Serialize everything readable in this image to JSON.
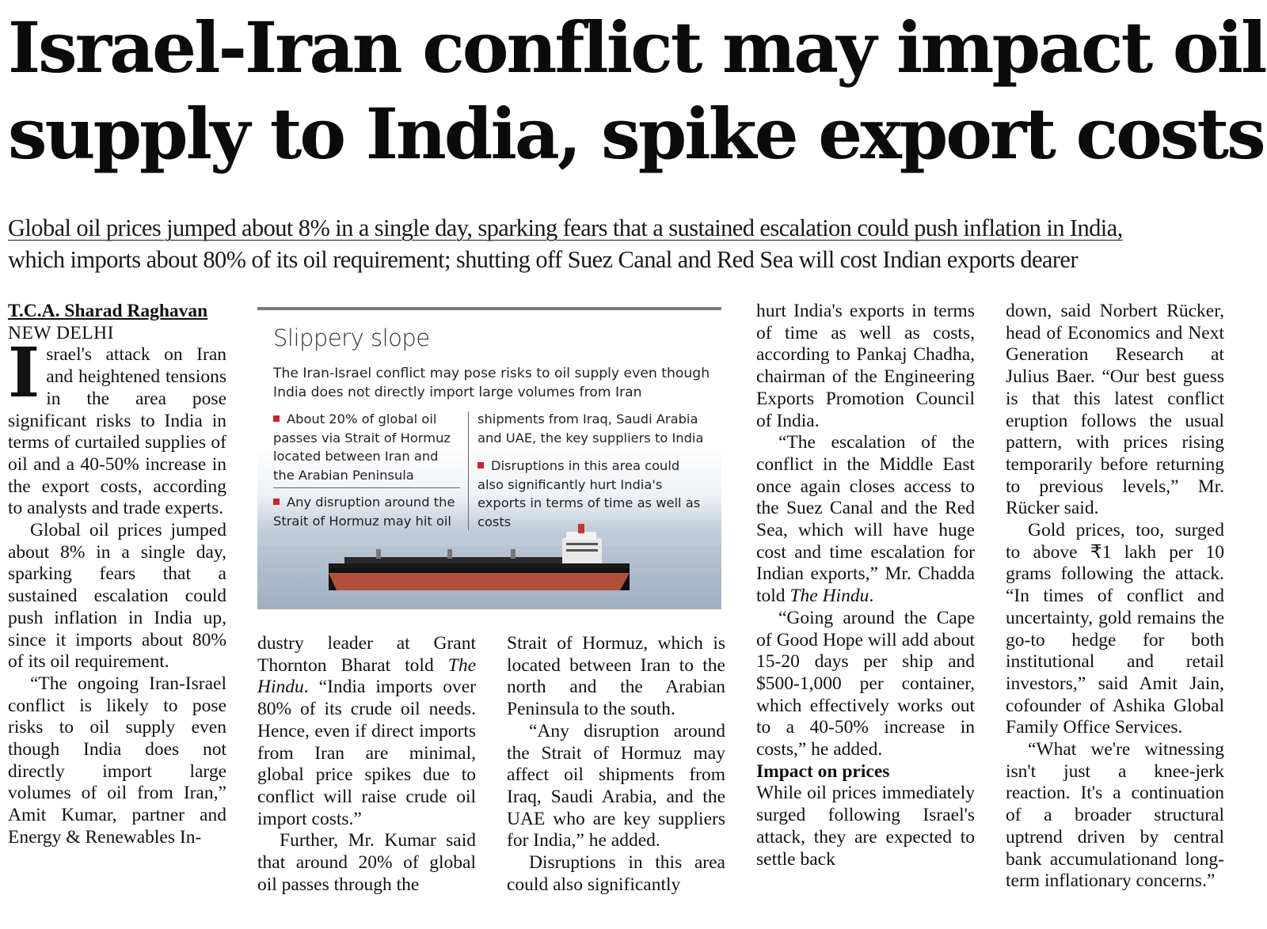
{
  "headline": {
    "line1": "Israel-Iran conflict may impact oil",
    "line2": "supply to India, spike export costs"
  },
  "deck": {
    "line1": "Global oil prices jumped about 8% in a single day, sparking fears that a sustained escalation could push inflation in India,",
    "line2": "which imports about 80% of its oil requirement; shutting off Suez Canal and Red Sea will cost Indian exports dearer"
  },
  "byline": {
    "name": "T.C.A. Sharad Raghavan",
    "place": "NEW DELHI"
  },
  "infobox": {
    "title": "Slippery slope",
    "subtitle": "The Iran-Israel conflict may pose risks to oil supply even though India does not directly import large volumes from Iran",
    "left_col": {
      "item1": "About 20% of global oil passes via Strait of Hormuz located between Iran and the Arabian Peninsula",
      "item2": "Any disruption around the Strait of Hormuz may hit oil"
    },
    "right_col": {
      "item1_cont": "shipments from Iraq, Saudi Arabia and UAE, the key suppliers to India",
      "item3": "Disruptions in this area could also significantly hurt India's exports in terms of time as well as costs"
    }
  },
  "article": {
    "dropcap": "I",
    "col1": {
      "p1": "srael's attack on Iran and heightened tensions in the area pose significant risks to India in terms of curtailed supplies of oil and a 40-50% increase in the export costs, according to analysts and trade experts.",
      "p2": "Global oil prices jumped about 8% in a single day, sparking fears that a sustained escalation could push inflation in India up, since it imports about 80% of its oil requirement.",
      "p3": "“The ongoing Iran-Israel conflict is likely to pose risks to oil supply even though India does not directly import large volumes of oil from Iran,” Amit Kumar, partner and Energy & Renewables In-"
    },
    "col2": {
      "p1a": "dustry leader at Grant Thornton Bharat told ",
      "p1b": "The Hindu",
      "p1c": ". “India imports over 80% of its crude oil needs. Hence, even if direct imports from Iran are minimal, global price spikes due to conflict will raise crude oil import costs.”",
      "p2": "Further, Mr. Kumar said that around 20% of global oil passes through the"
    },
    "col3": {
      "p1": "Strait of Hormuz, which is located between Iran to the north and the Arabian Peninsula to the south.",
      "p2": "“Any disruption around the Strait of Hormuz may affect oil shipments from Iraq, Saudi Arabia, and the UAE who are key suppliers for India,” he added.",
      "p3": "Disruptions in this area could also significantly"
    },
    "col4": {
      "p1": "hurt India's exports in terms of time as well as costs, according to Pankaj Chadha, chairman of the Engineering Exports Promotion Council of India.",
      "p2a": "“The escalation of the conflict in the Middle East once again closes access to the Suez Canal and the Red Sea, which will have huge cost and time escalation for Indian exports,” Mr. Chadda told ",
      "p2b": "The Hindu",
      "p2c": ".",
      "p3": "“Going around the Cape of Good Hope will add about 15-20 days per ship and $500-1,000 per container, which effectively works out to a 40-50% increase in costs,” he added.",
      "subhead": "Impact on prices",
      "p4": "While oil prices immediately surged following Israel's attack, they are expected to settle back"
    },
    "col5": {
      "p1": "down, said Norbert Rücker, head of Economics and Next Generation Research at Julius Baer. “Our best guess is that this latest conflict eruption follows the usual pattern, with prices rising temporarily before returning to previous levels,” Mr. Rücker said.",
      "p2": "Gold prices, too, surged to above ₹1 lakh per 10 grams following the attack. “In times of conflict and uncertainty, gold remains the go-to hedge for both institutional and retail investors,” said Amit Jain, cofounder of Ashika Global Family Office Services.",
      "p3": "“What we're witnessing isn't just a knee-jerk reaction. It's a continuation of a broader structural uptrend driven by central bank accumulationand long-term inflationary concerns.”"
    }
  }
}
